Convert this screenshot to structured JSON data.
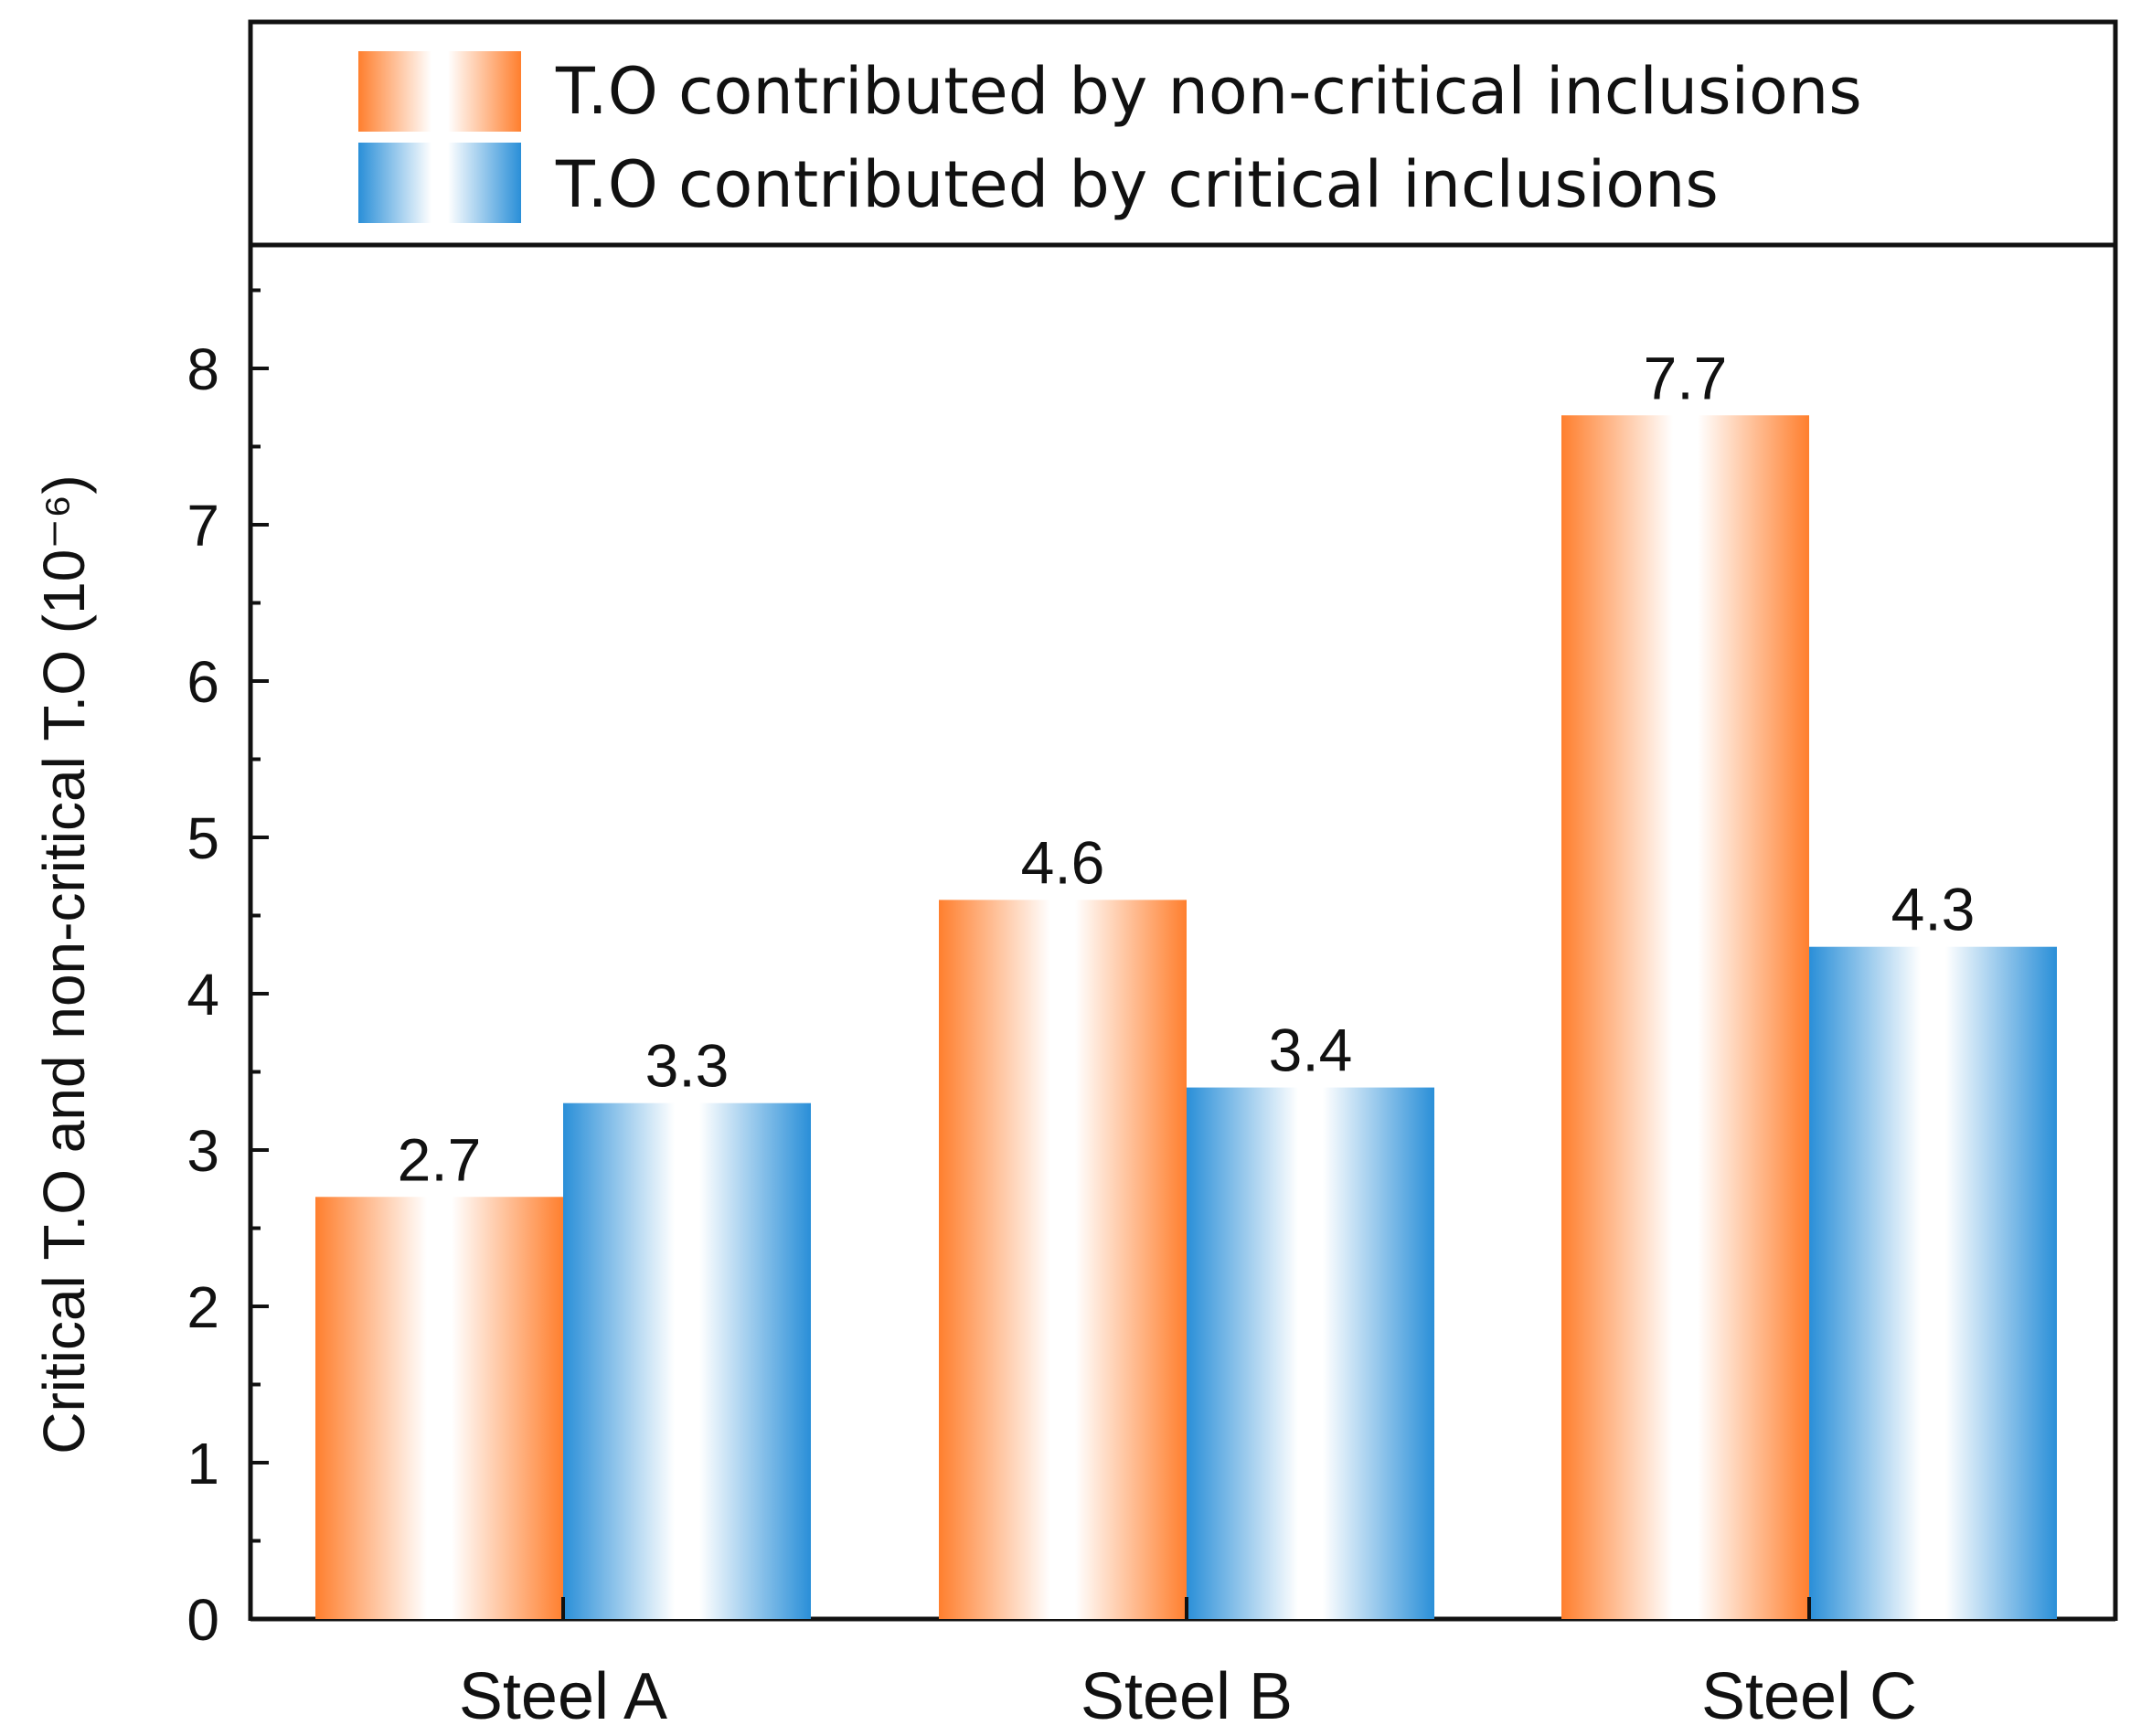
{
  "chart_data": {
    "type": "bar",
    "title": "",
    "xlabel": "",
    "ylabel": "Critical T.O and non-critical T.O (10⁻⁶)",
    "ylim": [
      0,
      8.8
    ],
    "yticks": [
      0,
      1,
      2,
      3,
      4,
      5,
      6,
      7,
      8
    ],
    "ytick_labels": [
      "0",
      "1",
      "2",
      "3",
      "4",
      "5",
      "6",
      "7",
      "8"
    ],
    "categories": [
      "Steel A",
      "Steel B",
      "Steel C"
    ],
    "series": [
      {
        "name": "T.O contributed by non-critical inclusions",
        "color": "#ff7f2e",
        "values": [
          2.7,
          4.6,
          7.7
        ],
        "value_labels": [
          "2.7",
          "4.6",
          "7.7"
        ]
      },
      {
        "name": "T.O contributed by critical inclusions",
        "color": "#2a8fd8",
        "values": [
          3.3,
          3.4,
          4.3
        ],
        "value_labels": [
          "3.3",
          "3.4",
          "4.3"
        ]
      }
    ],
    "legend_position": "top",
    "grid": false
  }
}
